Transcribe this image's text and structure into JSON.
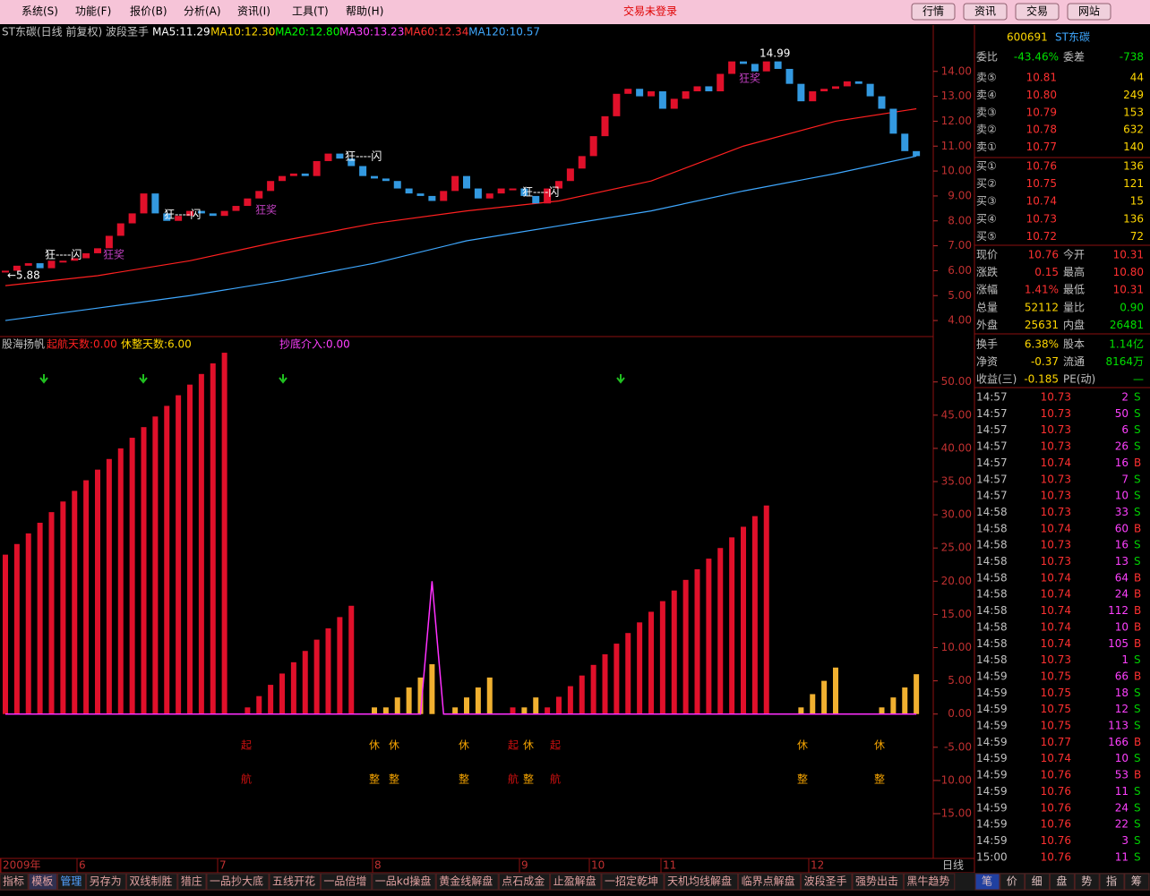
{
  "menu": {
    "items": [
      "系统(S)",
      "功能(F)",
      "报价(B)",
      "分析(A)",
      "资讯(I)",
      "工具(T)",
      "帮助(H)"
    ],
    "status": "交易未登录",
    "buttons": [
      "行情",
      "资讯",
      "交易",
      "网站"
    ]
  },
  "price_chart": {
    "type": "candlestick",
    "title": "ST东碳(日线 前复权) 波段圣手",
    "ma_labels": [
      {
        "text": "MA5:11.29",
        "color": "#ffffff"
      },
      {
        "text": "MA10:12.30",
        "color": "#ffd700"
      },
      {
        "text": "MA20:12.80",
        "color": "#00ff00"
      },
      {
        "text": "MA30:13.23",
        "color": "#ff40ff"
      },
      {
        "text": "MA60:12.34",
        "color": "#ff3030"
      },
      {
        "text": "MA120:10.57",
        "color": "#3fa8ff"
      }
    ],
    "close": [
      6.0,
      6.2,
      6.3,
      6.1,
      6.4,
      6.4,
      6.5,
      6.7,
      6.9,
      7.4,
      7.9,
      8.3,
      9.1,
      8.3,
      8.0,
      8.2,
      8.4,
      8.3,
      8.2,
      8.4,
      8.6,
      8.9,
      9.2,
      9.6,
      9.8,
      9.9,
      9.8,
      10.4,
      10.7,
      10.5,
      10.2,
      9.8,
      9.7,
      9.6,
      9.3,
      9.1,
      9.0,
      8.8,
      9.2,
      9.8,
      9.3,
      8.9,
      9.1,
      9.3,
      9.3,
      9.0,
      8.7,
      9.3,
      9.6,
      10.1,
      10.6,
      11.4,
      12.2,
      13.1,
      13.3,
      13.0,
      13.2,
      12.5,
      12.9,
      13.2,
      13.4,
      13.2,
      13.9,
      14.4,
      14.3,
      14.0,
      14.4,
      14.1,
      13.5,
      12.8,
      13.2,
      13.3,
      13.4,
      13.6,
      13.5,
      13.0,
      12.5,
      11.5,
      10.8,
      10.6
    ],
    "up_color": "#e0102a",
    "down_color": "#3399e0",
    "ma_index": [
      0,
      8,
      16,
      24,
      32,
      40,
      48,
      56,
      64,
      72,
      79
    ],
    "ma_lines": [
      {
        "color": "#ff2020",
        "values": [
          5.4,
          5.8,
          6.4,
          7.2,
          7.9,
          8.4,
          8.8,
          9.6,
          11.0,
          12.0,
          12.5
        ]
      },
      {
        "color": "#3fa8ff",
        "values": [
          4.0,
          4.5,
          5.0,
          5.6,
          6.3,
          7.2,
          7.8,
          8.4,
          9.2,
          9.9,
          10.6
        ]
      }
    ],
    "annotations": [
      "狂----闪",
      "狂----闪",
      "狂----闪",
      "狂----闪",
      "狂奖",
      "狂奖",
      "狂奖",
      "←5.88",
      "14.99"
    ],
    "ylim": [
      3.5,
      15.5
    ],
    "yticks": [
      {
        "value": 4,
        "label": "4.00"
      },
      {
        "value": 5,
        "label": "5.00"
      },
      {
        "value": 6,
        "label": "6.00"
      },
      {
        "value": 7,
        "label": "7.00"
      },
      {
        "value": 8,
        "label": "8.00"
      },
      {
        "value": 9,
        "label": "9.00"
      },
      {
        "value": 10,
        "label": "10.00"
      },
      {
        "value": 11,
        "label": "11.00"
      },
      {
        "value": 12,
        "label": "12.00"
      },
      {
        "value": 13,
        "label": "13.00"
      },
      {
        "value": 14,
        "label": "14.00"
      }
    ]
  },
  "indicator_chart": {
    "type": "bar",
    "title": "股海扬帆",
    "labels": [
      {
        "text": "起航天数:0.00",
        "color": "#ff2020"
      },
      {
        "text": "休整天数:6.00",
        "color": "#ffd700"
      },
      {
        "text": "抄底介入:0.00",
        "color": "#ff40ff"
      }
    ],
    "series": [
      {
        "color": "#e0102a",
        "values": [
          24,
          25.6,
          27.2,
          28.8,
          30.4,
          32,
          33.6,
          35.2,
          36.8,
          38.4,
          40,
          41.6,
          43.2,
          44.8,
          46.4,
          48,
          49.6,
          51.2,
          52.8,
          54.4,
          null,
          1,
          2.7,
          4.4,
          6.1,
          7.8,
          9.5,
          11.2,
          12.9,
          14.6,
          16.3,
          null,
          null,
          null,
          null,
          null,
          null,
          null,
          null,
          null,
          null,
          null,
          null,
          null,
          1,
          null,
          null,
          1,
          2.6,
          4.2,
          5.8,
          7.4,
          9,
          10.6,
          12.2,
          13.8,
          15.4,
          17,
          18.6,
          20.2,
          21.8,
          23.4,
          25,
          26.6,
          28.2,
          29.8,
          31.4,
          null,
          null,
          null,
          null,
          null,
          null,
          null,
          null,
          null,
          null,
          null,
          null,
          null
        ]
      },
      {
        "color": "#f0b030",
        "values": [
          null,
          null,
          null,
          null,
          null,
          null,
          null,
          null,
          null,
          null,
          null,
          null,
          null,
          null,
          null,
          null,
          null,
          null,
          null,
          null,
          null,
          null,
          null,
          null,
          null,
          null,
          null,
          null,
          null,
          null,
          null,
          null,
          1,
          1,
          2.5,
          4,
          5.5,
          7.5,
          null,
          1,
          2.5,
          4,
          5.5,
          null,
          null,
          1,
          2.5,
          null,
          null,
          null,
          null,
          null,
          null,
          null,
          null,
          null,
          null,
          null,
          null,
          null,
          null,
          null,
          null,
          null,
          null,
          null,
          null,
          null,
          null,
          1,
          3,
          5,
          7,
          null,
          null,
          null,
          1,
          2.5,
          4,
          6
        ]
      }
    ],
    "line": {
      "color": "#ff30ff",
      "values": [
        0,
        0,
        0,
        0,
        0,
        0,
        0,
        0,
        0,
        0,
        0,
        0,
        0,
        0,
        0,
        0,
        0,
        0,
        0,
        0,
        0,
        0,
        0,
        0,
        0,
        0,
        0,
        0,
        0,
        0,
        0,
        0,
        0,
        0,
        0,
        0,
        0,
        20,
        0,
        0,
        0,
        0,
        0,
        0,
        0,
        0,
        0,
        0,
        0,
        0,
        0,
        0,
        0,
        0,
        0,
        0,
        0,
        0,
        0,
        0,
        0,
        0,
        0,
        0,
        0,
        0,
        0,
        0,
        0,
        0,
        0,
        0,
        0,
        0,
        0,
        0,
        0,
        0,
        0,
        0
      ]
    },
    "annotations": [
      {
        "top": "起",
        "bottom": "航",
        "color": "#d01010"
      },
      {
        "top": "休",
        "bottom": "整",
        "color": "#f0a000"
      },
      {
        "top": "休",
        "bottom": "整",
        "color": "#f0a000"
      },
      {
        "top": "休",
        "bottom": "整",
        "color": "#f0a000"
      },
      {
        "top": "起",
        "bottom": "航",
        "color": "#d01010"
      },
      {
        "top": "休",
        "bottom": "整",
        "color": "#f0a000"
      },
      {
        "top": "起",
        "bottom": "航",
        "color": "#d01010"
      },
      {
        "top": "休",
        "bottom": "整",
        "color": "#f0a000"
      },
      {
        "top": "休",
        "bottom": "整",
        "color": "#f0a000"
      }
    ],
    "ylim": [
      -21.6,
      53.6
    ],
    "yticks": [
      {
        "value": -15,
        "label": "-15.00"
      },
      {
        "value": -10,
        "label": "-10.00"
      },
      {
        "value": -5,
        "label": "-5.00"
      },
      {
        "value": 0,
        "label": "0.00"
      },
      {
        "value": 5,
        "label": "5.00"
      },
      {
        "value": 10,
        "label": "10.00"
      },
      {
        "value": 15,
        "label": "15.00"
      },
      {
        "value": 20,
        "label": "20.00"
      },
      {
        "value": 25,
        "label": "25.00"
      },
      {
        "value": 30,
        "label": "30.00"
      },
      {
        "value": 35,
        "label": "35.00"
      },
      {
        "value": 40,
        "label": "40.00"
      },
      {
        "value": 45,
        "label": "45.00"
      },
      {
        "value": 50,
        "label": "50.00"
      }
    ]
  },
  "date_axis": {
    "labels": [
      "2009年",
      "6",
      "7",
      "8",
      "9",
      "10",
      "11",
      "12"
    ],
    "period": "日线"
  },
  "tabs": [
    "指标",
    "模板",
    "管理",
    "另存为",
    "双线制胜",
    "猎庄",
    "一品抄大底",
    "五线开花",
    "一品倍增",
    "一品kd操盘",
    "黄金线解盘",
    "点石成金",
    "止盈解盘",
    "一招定乾坤",
    "天机均线解盘",
    "临界点解盘",
    "波段圣手",
    "强势出击",
    "黑牛趋势"
  ],
  "side_tabs": [
    "笔",
    "价",
    "细",
    "盘",
    "势",
    "指",
    "筹"
  ],
  "quote": {
    "code": "600691",
    "name": "ST东碳",
    "ratio": [
      "委比",
      "-43.46%",
      "委差",
      "-738"
    ],
    "book": [
      [
        "卖⑤",
        "10.81",
        "44"
      ],
      [
        "卖④",
        "10.80",
        "249"
      ],
      [
        "卖③",
        "10.79",
        "153"
      ],
      [
        "卖②",
        "10.78",
        "632"
      ],
      [
        "卖①",
        "10.77",
        "140"
      ],
      [
        "买①",
        "10.76",
        "136"
      ],
      [
        "买②",
        "10.75",
        "121"
      ],
      [
        "买③",
        "10.74",
        "15"
      ],
      [
        "买④",
        "10.73",
        "136"
      ],
      [
        "买⑤",
        "10.72",
        "72"
      ]
    ],
    "stats": [
      [
        "现价",
        "10.76",
        "今开",
        "10.31"
      ],
      [
        "涨跌",
        "0.15",
        "最高",
        "10.80"
      ],
      [
        "涨幅",
        "1.41%",
        "最低",
        "10.31"
      ],
      [
        "总量",
        "52112",
        "量比",
        "0.90"
      ],
      [
        "外盘",
        "25631",
        "内盘",
        "26481"
      ],
      [
        "换手",
        "6.38%",
        "股本",
        "1.14亿"
      ],
      [
        "净资",
        "-0.37",
        "流通",
        "8164万"
      ],
      [
        "收益(三)",
        "-0.185",
        "PE(动)",
        "—"
      ]
    ]
  },
  "trades": [
    [
      "14:57",
      "10.73",
      "2",
      "S"
    ],
    [
      "14:57",
      "10.73",
      "50",
      "S"
    ],
    [
      "14:57",
      "10.73",
      "6",
      "S"
    ],
    [
      "14:57",
      "10.73",
      "26",
      "S"
    ],
    [
      "14:57",
      "10.74",
      "16",
      "B"
    ],
    [
      "14:57",
      "10.73",
      "7",
      "S"
    ],
    [
      "14:57",
      "10.73",
      "10",
      "S"
    ],
    [
      "14:58",
      "10.73",
      "33",
      "S"
    ],
    [
      "14:58",
      "10.74",
      "60",
      "B"
    ],
    [
      "14:58",
      "10.73",
      "16",
      "S"
    ],
    [
      "14:58",
      "10.73",
      "13",
      "S"
    ],
    [
      "14:58",
      "10.74",
      "64",
      "B"
    ],
    [
      "14:58",
      "10.74",
      "24",
      "B"
    ],
    [
      "14:58",
      "10.74",
      "112",
      "B"
    ],
    [
      "14:58",
      "10.74",
      "10",
      "B"
    ],
    [
      "14:58",
      "10.74",
      "105",
      "B"
    ],
    [
      "14:58",
      "10.73",
      "1",
      "S"
    ],
    [
      "14:59",
      "10.75",
      "66",
      "B"
    ],
    [
      "14:59",
      "10.75",
      "18",
      "S"
    ],
    [
      "14:59",
      "10.75",
      "12",
      "S"
    ],
    [
      "14:59",
      "10.75",
      "113",
      "S"
    ],
    [
      "14:59",
      "10.77",
      "166",
      "B"
    ],
    [
      "14:59",
      "10.74",
      "10",
      "S"
    ],
    [
      "14:59",
      "10.76",
      "53",
      "B"
    ],
    [
      "14:59",
      "10.76",
      "11",
      "S"
    ],
    [
      "14:59",
      "10.76",
      "24",
      "S"
    ],
    [
      "14:59",
      "10.76",
      "22",
      "S"
    ],
    [
      "14:59",
      "10.76",
      "3",
      "S"
    ],
    [
      "15:00",
      "10.76",
      "11",
      "S"
    ]
  ]
}
